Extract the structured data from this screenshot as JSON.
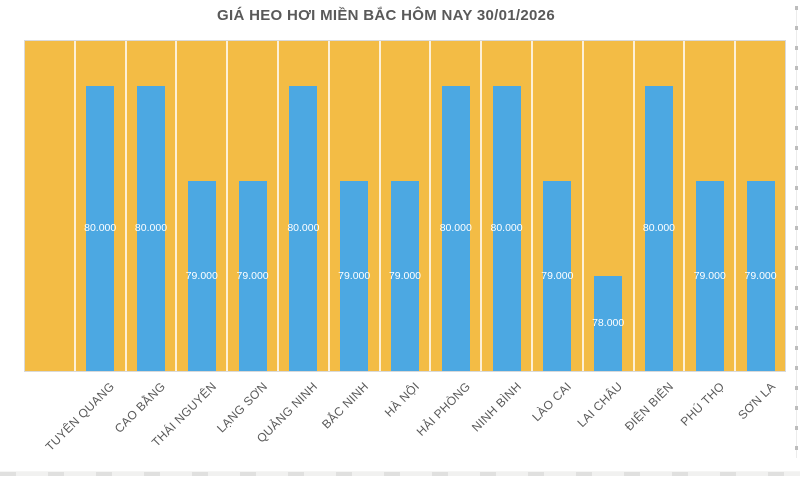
{
  "chart": {
    "title": "GIÁ HEO HƠI MIỀN BẮC HÔM NAY 30/01/2026",
    "colors": {
      "bar": "#4CA8E2",
      "plot_background": "#F3BC45",
      "plot_border": "#D9D9D9",
      "column_divider": "rgba(255,255,255,0.78)",
      "title_text": "#595959",
      "category_text": "#595959",
      "value_label_text": "#FFFFFF"
    }
  },
  "chart_data": {
    "type": "bar",
    "title": "GIÁ HEO HƠI MIỀN BẮC HÔM NAY 30/01/2026",
    "categories": [
      "",
      "TUYÊN QUANG",
      "CAO BẰNG",
      "THÁI NGUYÊN",
      "LẠNG SƠN",
      "QUẢNG NINH",
      "BẮC NINH",
      "HÀ NỘI",
      "HẢI PHÒNG",
      "NINH BÌNH",
      "LÀO CAI",
      "LAI CHÂU",
      "ĐIỆN BIÊN",
      "PHÚ THỌ",
      "SƠN LA"
    ],
    "values": [
      null,
      80000,
      80000,
      79000,
      79000,
      80000,
      79000,
      79000,
      80000,
      80000,
      79000,
      78000,
      80000,
      79000,
      79000
    ],
    "value_labels": [
      "",
      "80.000",
      "80.000",
      "79.000",
      "79.000",
      "80.000",
      "79.000",
      "79.000",
      "80.000",
      "80.000",
      "79.000",
      "78.000",
      "80.000",
      "79.000",
      "79.000"
    ],
    "xlabel": "",
    "ylabel": "",
    "ylim": [
      77000,
      80500
    ],
    "grid": "vertical column dividers only",
    "legend": "none",
    "bar_label_position": "center-inside"
  }
}
